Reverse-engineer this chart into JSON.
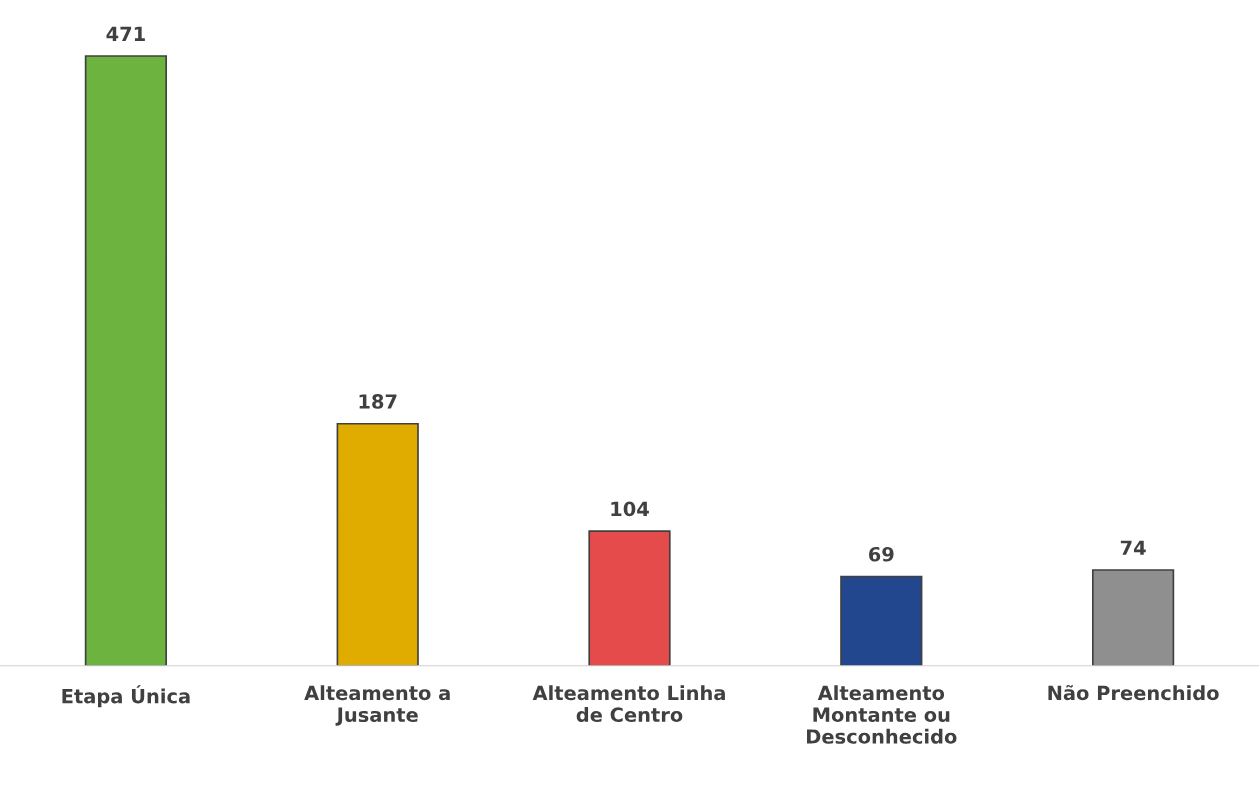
{
  "chart_data": {
    "type": "bar",
    "categories": [
      "Etapa Única",
      "Alteamento a\nJusante",
      "Alteamento Linha\nde Centro",
      "Alteamento\nMontante ou\nDesconhecido",
      "Não Preenchido"
    ],
    "values": [
      471,
      187,
      104,
      69,
      74
    ],
    "colors": [
      "#6db33f",
      "#e0ac00",
      "#e54b4b",
      "#23478f",
      "#8f8f8f"
    ],
    "data_labels": true,
    "grid": false,
    "legend": false
  }
}
